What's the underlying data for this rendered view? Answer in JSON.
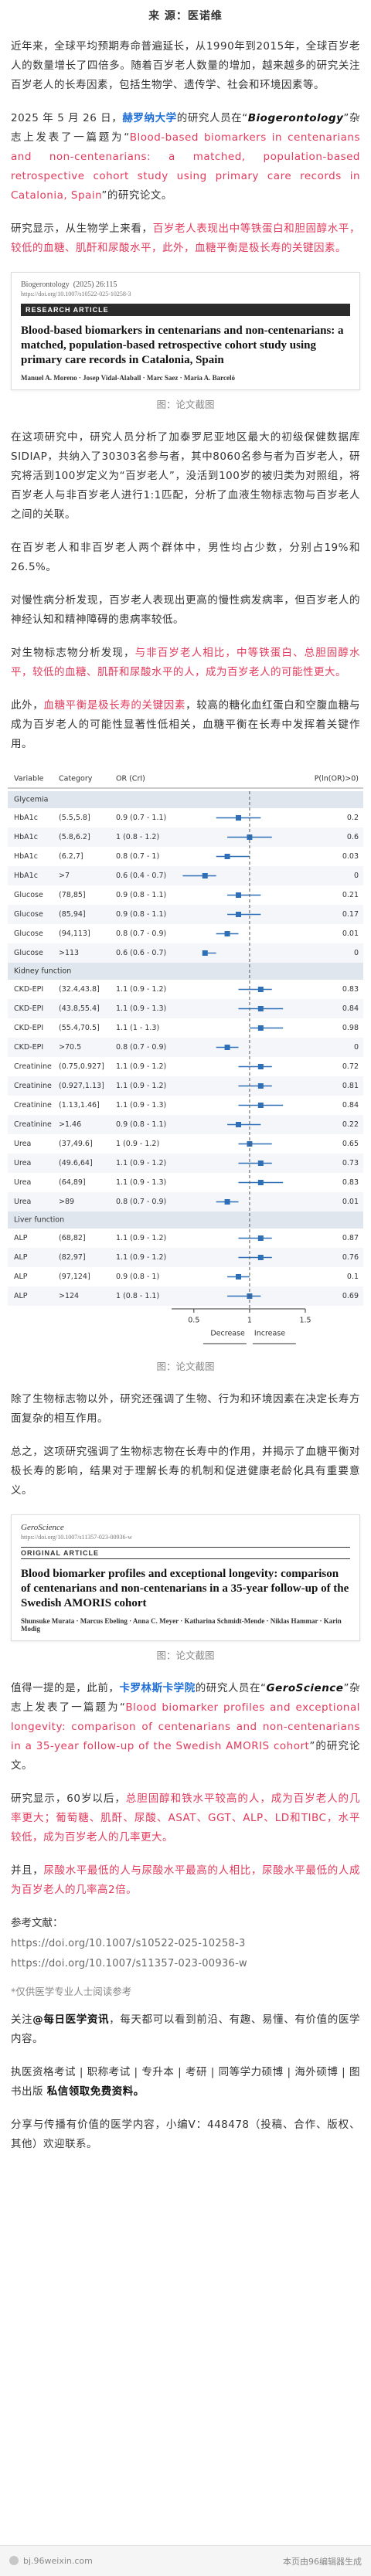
{
  "article": {
    "source": "来 源：医诺维",
    "paragraphs": [
      [
        {
          "text": "近年来，全球平均预期寿命普遍延长，从1990年到2015年，全球百岁老人的数量增长了四倍多。随着百岁老人数量的增加，越来越多的研究关注百岁老人的长寿因素，包括生物学、遗传学、社会和环境因素等。"
        }
      ],
      [
        {
          "text": "2025 年 5 月 26 日，"
        },
        {
          "text": "赫罗纳大学",
          "style": "blue"
        },
        {
          "text": "的研究人员在“"
        },
        {
          "text": "Biogerontology",
          "style": "bold-italic"
        },
        {
          "text": "”杂志上发表了一篇题为“"
        },
        {
          "text": "Blood-based biomarkers in centenarians and non-centenarians: a matched, population-based retrospective cohort study using primary care records in Catalonia, Spain",
          "style": "red"
        },
        {
          "text": "”的研究论文。"
        }
      ],
      [
        {
          "text": "研究显示，从生物学上来看，"
        },
        {
          "text": "百岁老人表现出中等铁蛋白和胆固醇水平，较低的血糖、肌酐和尿酸水平，此外，血糖平衡是极长寿的关键因素。",
          "style": "red"
        }
      ],
      [
        {
          "text": "在这项研究中，研究人员分析了加泰罗尼亚地区最大的初级保健数据库SIDIAP，共纳入了30303名参与者，其中8060名参与者为百岁老人，研究将活到100岁定义为“百岁老人”，没活到100岁的被归类为对照组，将百岁老人与非百岁老人进行1:1匹配，分析了血液生物标志物与百岁老人之间的关联。"
        }
      ],
      [
        {
          "text": "在百岁老人和非百岁老人两个群体中，男性均占少数，分别占19%和26.5%。"
        }
      ],
      [
        {
          "text": "对慢性病分析发现，百岁老人表现出更高的慢性病发病率，但百岁老人的神经认知和精神障碍的患病率较低。"
        }
      ],
      [
        {
          "text": "对生物标志物分析发现，"
        },
        {
          "text": "与非百岁老人相比，中等铁蛋白、总胆固醇水平，较低的血糖、肌酐和尿酸水平的人，成为百岁老人的可能性更大。",
          "style": "red"
        }
      ],
      [
        {
          "text": "此外，"
        },
        {
          "text": "血糖平衡是极长寿的关键因素",
          "style": "red"
        },
        {
          "text": "，较高的糖化血红蛋白和空腹血糖与成为百岁老人的可能性显著性低相关，血糖平衡在长寿中发挥着关键作用。"
        }
      ],
      [
        {
          "text": "除了生物标志物以外，研究还强调了生物、行为和环境因素在决定长寿方面复杂的相互作用。"
        }
      ],
      [
        {
          "text": "总之，这项研究强调了生物标志物在长寿中的作用，并揭示了血糖平衡对极长寿的影响，结果对于理解长寿的机制和促进健康老龄化具有重要意义。"
        }
      ],
      [
        {
          "text": "值得一提的是，此前，"
        },
        {
          "text": "卡罗林斯卡学院",
          "style": "blue"
        },
        {
          "text": "的研究人员在“"
        },
        {
          "text": "GeroScience",
          "style": "bold-italic"
        },
        {
          "text": "”杂志上发表了一篇题为“"
        },
        {
          "text": "Blood biomarker profiles and exceptional longevity: comparison of centenarians and non-centenarians in a 35-year follow-up of the Swedish AMORIS cohort",
          "style": "red"
        },
        {
          "text": "”的研究论文。"
        }
      ],
      [
        {
          "text": "研究显示，60岁以后，"
        },
        {
          "text": "总胆固醇和铁水平较高的人，成为百岁老人的几率更大；葡萄糖、肌酐、尿酸、ASAT、GGT、ALP、LD和TIBC，水平较低，成为百岁老人的几率更大。",
          "style": "red"
        }
      ],
      [
        {
          "text": "并且，"
        },
        {
          "text": "尿酸水平最低的人与尿酸水平最高的人相比，尿酸水平最低的人成为百岁老人的几率高2倍。",
          "style": "red"
        }
      ]
    ],
    "references_title": "参考文献：",
    "references": [
      "https://doi.org/10.1007/s10522-025-10258-3",
      "https://doi.org/10.1007/s11357-023-00936-w"
    ],
    "disclaimer": "*仅供医学专业人士阅读参考",
    "follow": [
      {
        "text": "关注"
      },
      {
        "text": "@每日医学资讯",
        "style": "bold"
      },
      {
        "text": "，每天都可以看到前沿、有趣、易懂、有价值的医学内容。"
      }
    ],
    "services": [
      {
        "text": "执医资格考试 | 职称考试 | 专升本 | 考研 | 同等学力硕博 | 海外硕博 | 图书出版 "
      },
      {
        "text": "私信领取免费资料。",
        "style": "bold"
      }
    ],
    "contact": [
      {
        "text": "分享与传播有价值的医学内容，小编V：448478（投稿、合作、版权、其他）欢迎联系。"
      }
    ]
  },
  "figure_1": {
    "journal": "Biogerontology",
    "citation": "(2025) 26:115",
    "doi": "https://doi.org/10.1007/s10522-025-10258-3",
    "banner": "RESEARCH ARTICLE",
    "title": "Blood-based biomarkers in centenarians and non-centenarians: a matched, population-based retrospective cohort study using primary care records in Catalonia, Spain",
    "authors": "Manuel A. Moreno · Josep Vidal-Alaball · Marc Saez · Maria A. Barceló",
    "caption": "图：论文截图"
  },
  "forest_plot": {
    "columns": [
      "Variable",
      "Category",
      "OR (CrI)",
      "P(ln(OR)>0)"
    ],
    "xlim": [
      0.3,
      1.5
    ],
    "xticks": [
      0.5,
      1,
      1.5
    ],
    "reference_line": 1,
    "axis_labels": [
      "Decrease",
      "Increase"
    ],
    "color": "#2e6fb7",
    "groups": [
      {
        "name": "Glycemia",
        "rows": [
          {
            "variable": "HbA1c",
            "category": "(5.5,5.8]",
            "or": 0.9,
            "lower": 0.7,
            "upper": 1.1,
            "or_label": "0.9 (0.7 - 1.1)",
            "p": 0.2
          },
          {
            "variable": "HbA1c",
            "category": "(5.8,6.2]",
            "or": 1,
            "lower": 0.8,
            "upper": 1.2,
            "or_label": "1 (0.8 - 1.2)",
            "p": 0.6
          },
          {
            "variable": "HbA1c",
            "category": "(6.2,7]",
            "or": 0.8,
            "lower": 0.7,
            "upper": 1,
            "or_label": "0.8 (0.7 - 1)",
            "p": 0.03
          },
          {
            "variable": "HbA1c",
            "category": ">7",
            "or": 0.6,
            "lower": 0.4,
            "upper": 0.7,
            "or_label": "0.6 (0.4 - 0.7)",
            "p": 0
          },
          {
            "variable": "Glucose",
            "category": "(78,85]",
            "or": 0.9,
            "lower": 0.8,
            "upper": 1.1,
            "or_label": "0.9 (0.8 - 1.1)",
            "p": 0.21
          },
          {
            "variable": "Glucose",
            "category": "(85,94]",
            "or": 0.9,
            "lower": 0.8,
            "upper": 1.1,
            "or_label": "0.9 (0.8 - 1.1)",
            "p": 0.17
          },
          {
            "variable": "Glucose",
            "category": "(94,113]",
            "or": 0.8,
            "lower": 0.7,
            "upper": 0.9,
            "or_label": "0.8 (0.7 - 0.9)",
            "p": 0.01
          },
          {
            "variable": "Glucose",
            "category": ">113",
            "or": 0.6,
            "lower": 0.6,
            "upper": 0.7,
            "or_label": "0.6 (0.6 - 0.7)",
            "p": 0
          }
        ]
      },
      {
        "name": "Kidney function",
        "rows": [
          {
            "variable": "CKD-EPI",
            "category": "(32.4,43.8]",
            "or": 1.1,
            "lower": 0.9,
            "upper": 1.2,
            "or_label": "1.1 (0.9 - 1.2)",
            "p": 0.83
          },
          {
            "variable": "CKD-EPI",
            "category": "(43.8,55.4]",
            "or": 1.1,
            "lower": 0.9,
            "upper": 1.3,
            "or_label": "1.1 (0.9 - 1.3)",
            "p": 0.84
          },
          {
            "variable": "CKD-EPI",
            "category": "(55.4,70.5]",
            "or": 1.1,
            "lower": 1,
            "upper": 1.3,
            "or_label": "1.1 (1 - 1.3)",
            "p": 0.98
          },
          {
            "variable": "CKD-EPI",
            "category": ">70.5",
            "or": 0.8,
            "lower": 0.7,
            "upper": 0.9,
            "or_label": "0.8 (0.7 - 0.9)",
            "p": 0
          },
          {
            "variable": "Creatinine",
            "category": "(0.75,0.927]",
            "or": 1.1,
            "lower": 0.9,
            "upper": 1.2,
            "or_label": "1.1 (0.9 - 1.2)",
            "p": 0.72
          },
          {
            "variable": "Creatinine",
            "category": "(0.927,1.13]",
            "or": 1.1,
            "lower": 0.9,
            "upper": 1.2,
            "or_label": "1.1 (0.9 - 1.2)",
            "p": 0.81
          },
          {
            "variable": "Creatinine",
            "category": "(1.13,1.46]",
            "or": 1.1,
            "lower": 0.9,
            "upper": 1.3,
            "or_label": "1.1 (0.9 - 1.3)",
            "p": 0.84
          },
          {
            "variable": "Creatinine",
            "category": ">1.46",
            "or": 0.9,
            "lower": 0.8,
            "upper": 1.1,
            "or_label": "0.9 (0.8 - 1.1)",
            "p": 0.22
          },
          {
            "variable": "Urea",
            "category": "(37,49.6]",
            "or": 1,
            "lower": 0.9,
            "upper": 1.2,
            "or_label": "1 (0.9 - 1.2)",
            "p": 0.65
          },
          {
            "variable": "Urea",
            "category": "(49.6,64]",
            "or": 1.1,
            "lower": 0.9,
            "upper": 1.2,
            "or_label": "1.1 (0.9 - 1.2)",
            "p": 0.73
          },
          {
            "variable": "Urea",
            "category": "(64,89]",
            "or": 1.1,
            "lower": 0.9,
            "upper": 1.3,
            "or_label": "1.1 (0.9 - 1.3)",
            "p": 0.83
          },
          {
            "variable": "Urea",
            "category": ">89",
            "or": 0.8,
            "lower": 0.7,
            "upper": 0.9,
            "or_label": "0.8 (0.7 - 0.9)",
            "p": 0.01
          }
        ]
      },
      {
        "name": "Liver function",
        "rows": [
          {
            "variable": "ALP",
            "category": "(68,82]",
            "or": 1.1,
            "lower": 0.9,
            "upper": 1.2,
            "or_label": "1.1 (0.9 - 1.2)",
            "p": 0.87
          },
          {
            "variable": "ALP",
            "category": "(82,97]",
            "or": 1.1,
            "lower": 0.9,
            "upper": 1.2,
            "or_label": "1.1 (0.9 - 1.2)",
            "p": 0.76
          },
          {
            "variable": "ALP",
            "category": "(97,124]",
            "or": 0.9,
            "lower": 0.8,
            "upper": 1,
            "or_label": "0.9 (0.8 - 1)",
            "p": 0.1
          },
          {
            "variable": "ALP",
            "category": ">124",
            "or": 1,
            "lower": 0.8,
            "upper": 1.1,
            "or_label": "1 (0.8 - 1.1)",
            "p": 0.69
          }
        ]
      }
    ],
    "caption": "图：论文截图"
  },
  "figure_2": {
    "journal": "GeroScience",
    "doi": "https://doi.org/10.1007/s11357-023-00936-w",
    "banner": "ORIGINAL ARTICLE",
    "title": "Blood biomarker profiles and exceptional longevity: comparison of centenarians and non-centenarians in a 35-year follow-up of the Swedish AMORIS cohort",
    "authors": "Shunsuke Murata · Marcus Ebeling · Anna C. Meyer · Katharina Schmidt-Mende · Niklas Hammar · Karin Modig",
    "caption": "图：论文截图"
  },
  "footer": {
    "site": "bj.96weixin.com",
    "note": "本页由96编辑器生成"
  }
}
